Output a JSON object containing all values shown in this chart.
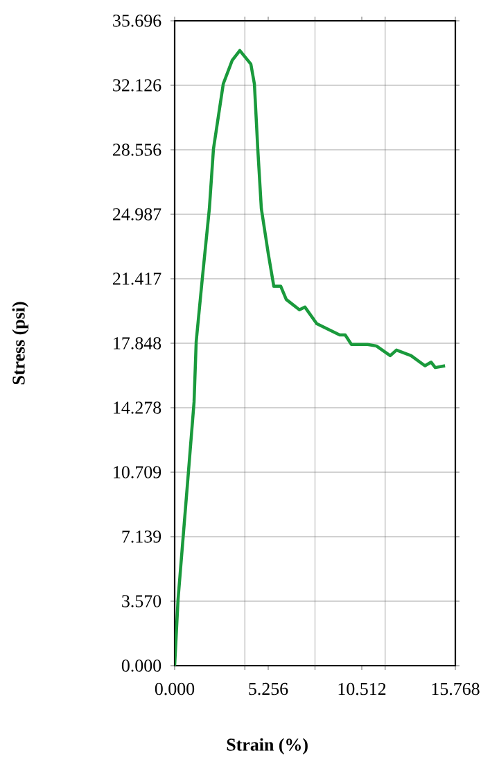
{
  "chart_data": {
    "type": "line",
    "xlabel": "Strain (%)",
    "ylabel": "Stress (psi)",
    "x": [
      0,
      0.19,
      0.78,
      1.09,
      1.21,
      1.56,
      1.95,
      2.18,
      2.73,
      3.23,
      3.66,
      4.28,
      4.48,
      4.67,
      4.87,
      5.26,
      5.57,
      5.96,
      6.27,
      7.01,
      7.32,
      7.98,
      9.27,
      9.58,
      9.93,
      10.83,
      11.33,
      12.11,
      12.46,
      13.28,
      14.06,
      14.41,
      14.64,
      15.19
    ],
    "series": [
      {
        "color": "#1a9a3c",
        "values": [
          0,
          3.65,
          10.79,
          14.59,
          17.93,
          21.5,
          25.3,
          28.6,
          32.2,
          33.5,
          34.05,
          33.3,
          32.2,
          28.6,
          25.3,
          22.8,
          21.0,
          21.0,
          20.27,
          19.7,
          19.85,
          18.93,
          18.31,
          18.31,
          17.78,
          17.78,
          17.7,
          17.16,
          17.47,
          17.16,
          16.6,
          16.8,
          16.5,
          16.6
        ]
      }
    ],
    "xlim": [
      0,
      15.768
    ],
    "xticks": [
      {
        "value": 0,
        "label": "0.000"
      },
      {
        "value": 3.942,
        "label": null
      },
      {
        "value": 5.256,
        "label": "5.256"
      },
      {
        "value": 7.884,
        "label": null
      },
      {
        "value": 10.512,
        "label": "10.512"
      },
      {
        "value": 11.826,
        "label": null
      },
      15.768
    ],
    "ylim": [
      0,
      35.696
    ],
    "yticks": [
      {
        "value": 0,
        "label": "0.000"
      },
      {
        "value": 3.57,
        "label": "3.570"
      },
      7.139,
      10.709,
      14.278,
      17.848,
      21.417,
      24.987,
      28.556,
      32.126,
      35.696
    ],
    "grid": true,
    "marker": "none",
    "line_style": "solid"
  }
}
